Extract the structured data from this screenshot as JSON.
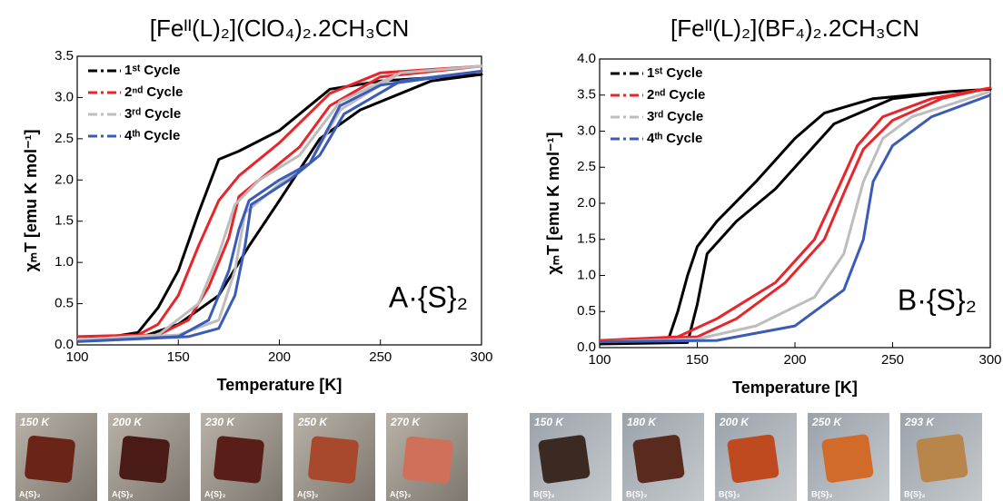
{
  "chart_data": [
    {
      "type": "line",
      "title": "[Feᴵᴵ(L)₂](ClO₄)₂.2CH₃CN",
      "x_label": "Temperature [K]",
      "y_label": "χₘT [emu K mol⁻¹]",
      "annotation": "A·{S}₂",
      "legend": "upper left",
      "xlim": [
        100,
        300
      ],
      "xticks": [
        100,
        150,
        200,
        250,
        300
      ],
      "ylim": [
        0,
        3.5
      ],
      "yticks": [
        {
          "value": 0,
          "label": "0.0"
        },
        0.5,
        {
          "value": 1,
          "label": "1.0"
        },
        1.5,
        {
          "value": 2,
          "label": "2.0"
        },
        2.5,
        {
          "value": 3,
          "label": "3.0"
        },
        3.5
      ],
      "series": [
        {
          "name": "1ˢᵗ Cycle",
          "color": "#000000",
          "x": [
            100,
            130,
            150,
            170,
            185,
            200,
            220,
            240,
            275,
            300,
            250,
            225,
            200,
            180,
            170,
            160,
            150,
            140,
            130,
            110,
            100
          ],
          "values": [
            0.05,
            0.08,
            0.25,
            0.6,
            1.2,
            1.75,
            2.5,
            2.85,
            3.2,
            3.28,
            3.2,
            3.1,
            2.6,
            2.35,
            2.25,
            1.6,
            0.9,
            0.45,
            0.15,
            0.07,
            0.05
          ]
        },
        {
          "name": "2ⁿᵈ Cycle",
          "color": "#e8252a",
          "x": [
            100,
            140,
            155,
            165,
            175,
            180,
            195,
            210,
            225,
            250,
            300,
            250,
            225,
            200,
            180,
            170,
            160,
            150,
            140,
            130,
            100
          ],
          "values": [
            0.1,
            0.12,
            0.3,
            0.7,
            1.3,
            1.8,
            2.1,
            2.4,
            2.9,
            3.25,
            3.38,
            3.3,
            3.05,
            2.45,
            2.05,
            1.75,
            1.2,
            0.6,
            0.25,
            0.12,
            0.1
          ]
        },
        {
          "name": "3ʳᵈ Cycle",
          "color": "#bdbdbd",
          "x": [
            100,
            150,
            170,
            178,
            183,
            200,
            215,
            230,
            260,
            300,
            260,
            230,
            210,
            190,
            178,
            170,
            160,
            140,
            100
          ],
          "values": [
            0.06,
            0.12,
            0.3,
            0.9,
            1.6,
            1.95,
            2.2,
            2.85,
            3.3,
            3.38,
            3.3,
            2.95,
            2.3,
            2.0,
            1.7,
            1.1,
            0.5,
            0.12,
            0.06
          ]
        },
        {
          "name": "4ᵗʰ Cycle",
          "color": "#3a5cb8",
          "x": [
            100,
            155,
            170,
            178,
            183,
            186,
            205,
            220,
            232,
            260,
            300,
            250,
            230,
            215,
            200,
            185,
            180,
            175,
            165,
            150,
            100
          ],
          "values": [
            0.04,
            0.1,
            0.2,
            0.6,
            1.2,
            1.7,
            2.0,
            2.3,
            2.8,
            3.2,
            3.32,
            3.15,
            2.9,
            2.2,
            2.0,
            1.75,
            1.4,
            0.9,
            0.3,
            0.1,
            0.04
          ]
        }
      ]
    },
    {
      "type": "line",
      "title": "[Feᴵᴵ(L)₂](BF₄)₂.2CH₃CN",
      "x_label": "Temperature [K]",
      "y_label": "χₘT [emu K mol⁻¹]",
      "annotation": "B·{S}₂",
      "legend": "upper left",
      "xlim": [
        100,
        300
      ],
      "xticks": [
        100,
        150,
        200,
        250,
        300
      ],
      "ylim": [
        0,
        4
      ],
      "yticks": [
        {
          "value": 0,
          "label": "0.0"
        },
        0.5,
        {
          "value": 1,
          "label": "1.0"
        },
        1.5,
        {
          "value": 2,
          "label": "2.0"
        },
        2.5,
        {
          "value": 3,
          "label": "3.0"
        },
        3.5,
        {
          "value": 4,
          "label": "4.0"
        }
      ],
      "series": [
        {
          "name": "1ˢᵗ Cycle",
          "color": "#000000",
          "x": [
            100,
            145,
            150,
            155,
            170,
            190,
            205,
            220,
            250,
            280,
            300,
            280,
            240,
            215,
            200,
            180,
            160,
            150,
            145,
            140,
            135,
            100
          ],
          "values": [
            0.05,
            0.07,
            0.6,
            1.3,
            1.75,
            2.2,
            2.65,
            3.1,
            3.45,
            3.55,
            3.58,
            3.55,
            3.45,
            3.25,
            2.9,
            2.3,
            1.75,
            1.4,
            1.0,
            0.5,
            0.1,
            0.05
          ]
        },
        {
          "name": "2ⁿᵈ Cycle",
          "color": "#e8252a",
          "x": [
            100,
            150,
            170,
            195,
            215,
            226,
            235,
            250,
            275,
            300,
            270,
            245,
            232,
            222,
            210,
            190,
            160,
            140,
            100
          ],
          "values": [
            0.1,
            0.15,
            0.4,
            0.9,
            1.5,
            2.2,
            2.75,
            3.15,
            3.45,
            3.6,
            3.45,
            3.2,
            2.8,
            2.2,
            1.5,
            0.9,
            0.4,
            0.15,
            0.1
          ]
        },
        {
          "name": "3ʳᵈ Cycle",
          "color": "#bdbdbd",
          "x": [
            100,
            150,
            180,
            210,
            225,
            235,
            245,
            260,
            300
          ],
          "values": [
            0.08,
            0.12,
            0.3,
            0.7,
            1.3,
            2.3,
            2.9,
            3.2,
            3.55
          ]
        },
        {
          "name": "4ᵗʰ Cycle",
          "color": "#3a5cb8",
          "x": [
            100,
            160,
            200,
            225,
            235,
            240,
            250,
            270,
            300
          ],
          "values": [
            0.08,
            0.1,
            0.3,
            0.8,
            1.5,
            2.3,
            2.8,
            3.2,
            3.5
          ]
        }
      ]
    }
  ],
  "photos": [
    {
      "labels": [
        "150 K",
        "200 K",
        "230 K",
        "250 K",
        "270 K"
      ],
      "caption": "A{S}₂"
    },
    {
      "labels": [
        "150 K",
        "180 K",
        "200 K",
        "250 K",
        "293 K"
      ],
      "caption": "B{S}₂"
    }
  ]
}
